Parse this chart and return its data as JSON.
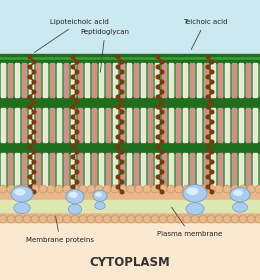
{
  "bg_color": "#cce8f0",
  "cytoplasm_color": "#fae8d0",
  "cell_wall_green": "#3a9e3a",
  "cell_wall_dark_green": "#1e6e1e",
  "cross_link_white": "#f0ede0",
  "cross_link_pink": "#d89090",
  "teichoic_brown": "#7a3a10",
  "membrane_peach": "#e8b888",
  "membrane_blue_light": "#aaccee",
  "membrane_blue_dark": "#7799cc",
  "membrane_core": "#dde8b0",
  "figsize": [
    2.6,
    2.8
  ],
  "dpi": 100,
  "title": "CYTOPLASM",
  "label_lipoteichoic": "Lipoteichoic acid",
  "label_peptidoglycan": "Peptidoglycan",
  "label_teichoic": "Teichoic acid",
  "label_membrane_proteins": "Membrane proteins",
  "label_plasma_membrane": "Plasma membrane"
}
